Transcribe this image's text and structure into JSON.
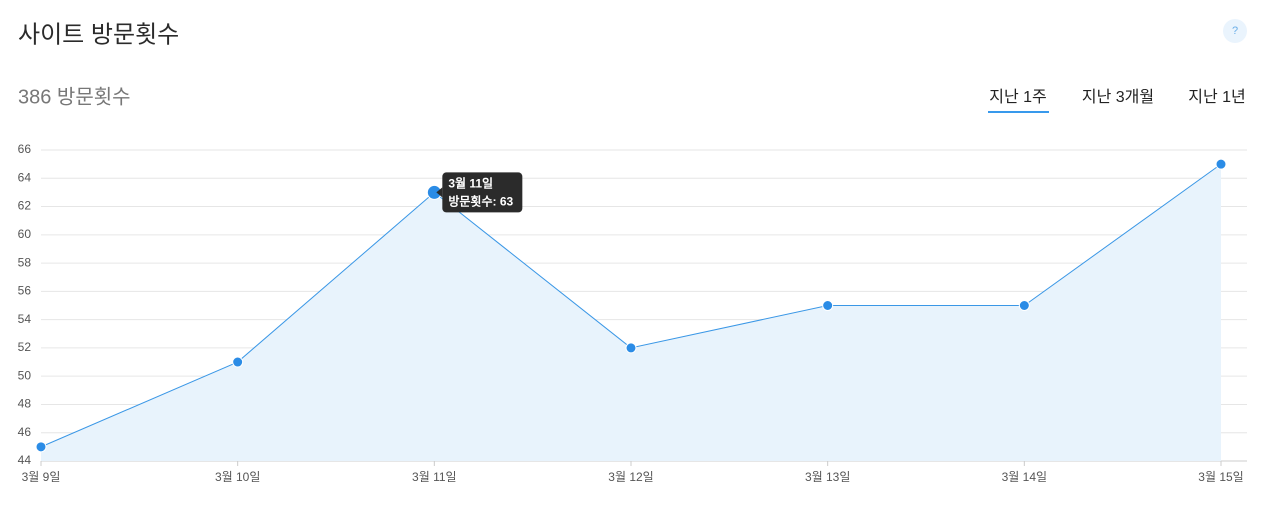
{
  "header": {
    "title": "사이트 방문횟수",
    "help": "?",
    "summary": "386 방문횟수",
    "tabs": [
      "지난 1주",
      "지난 3개월",
      "지난 1년"
    ]
  },
  "chart_data": {
    "type": "line",
    "categories": [
      "3월 9일",
      "3월 10일",
      "3월 11일",
      "3월 12일",
      "3월 13일",
      "3월 14일",
      "3월 15일"
    ],
    "values": [
      45,
      51,
      63,
      52,
      55,
      55,
      65
    ],
    "color": "#3a97e6",
    "area_color": "#e8f3fc",
    "ylim": [
      44,
      66
    ],
    "yticks": [
      44,
      46,
      48,
      50,
      52,
      54,
      56,
      58,
      60,
      62,
      64,
      66
    ],
    "grid": true,
    "tooltip": {
      "title": "3월 11일",
      "label": "방문횟수: 63"
    }
  }
}
